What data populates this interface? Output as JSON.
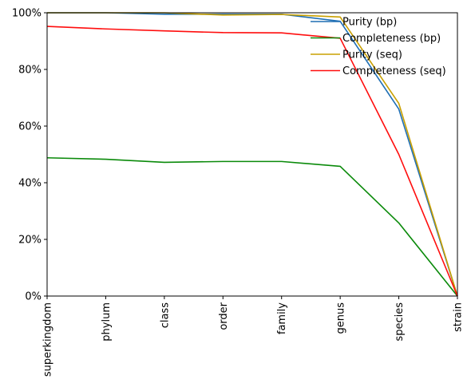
{
  "chart_data": {
    "type": "line",
    "categories": [
      "superkingdom",
      "phylum",
      "class",
      "order",
      "family",
      "genus",
      "species",
      "strain"
    ],
    "series": [
      {
        "name": "Purity (bp)",
        "color": "#1f6fb4",
        "values": [
          100,
          100,
          99.5,
          99.5,
          99.5,
          97,
          66,
          0
        ]
      },
      {
        "name": "Completeness (bp)",
        "color": "#0a8a0a",
        "values": [
          48.8,
          48.3,
          47.2,
          47.5,
          47.5,
          45.8,
          25.8,
          0
        ]
      },
      {
        "name": "Purity (seq)",
        "color": "#c9a000",
        "values": [
          100,
          100,
          100,
          99.2,
          99.4,
          98.5,
          68,
          0
        ]
      },
      {
        "name": "Completeness (seq)",
        "color": "#ff0d0d",
        "values": [
          95.2,
          94.3,
          93.6,
          93,
          92.9,
          91,
          50,
          0
        ]
      }
    ],
    "ylim": [
      0,
      100
    ],
    "yticks": [
      "0%",
      "20%",
      "40%",
      "60%",
      "80%",
      "100%"
    ],
    "grid": false,
    "legend_position": "top-right"
  }
}
